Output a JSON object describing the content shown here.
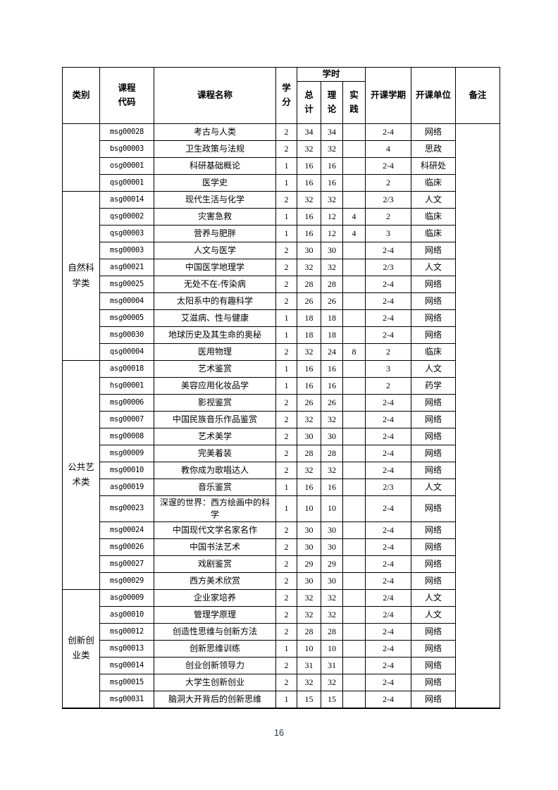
{
  "page": {
    "number": "16"
  },
  "table": {
    "headers": {
      "category": "类别",
      "code": "课程代码",
      "name": "课程名称",
      "credits": "学分",
      "hours": "学时",
      "hours_total": "总计",
      "hours_theory": "理论",
      "hours_practice": "实践",
      "semester": "开课学期",
      "department": "开课单位",
      "remarks": "备注"
    },
    "groups": [
      {
        "category": "",
        "rows": [
          {
            "code": "msg00028",
            "name": "考古与人类",
            "credits": "2",
            "total": "34",
            "theory": "34",
            "practice": "",
            "semester": "2-4",
            "department": "网络"
          },
          {
            "code": "bsg00003",
            "name": "卫生政策与法规",
            "credits": "2",
            "total": "32",
            "theory": "32",
            "practice": "",
            "semester": "4",
            "department": "思政"
          },
          {
            "code": "osg00001",
            "name": "科研基础概论",
            "credits": "1",
            "total": "16",
            "theory": "16",
            "practice": "",
            "semester": "2-4",
            "department": "科研处"
          },
          {
            "code": "qsg00001",
            "name": "医学史",
            "credits": "1",
            "total": "16",
            "theory": "16",
            "practice": "",
            "semester": "2",
            "department": "临床"
          }
        ]
      },
      {
        "category": "自然科学类",
        "rows": [
          {
            "code": "asg00014",
            "name": "现代生活与化学",
            "credits": "2",
            "total": "32",
            "theory": "32",
            "practice": "",
            "semester": "2/3",
            "department": "人文"
          },
          {
            "code": "qsg00002",
            "name": "灾害急救",
            "credits": "1",
            "total": "16",
            "theory": "12",
            "practice": "4",
            "semester": "2",
            "department": "临床"
          },
          {
            "code": "qsg00003",
            "name": "营养与肥胖",
            "credits": "1",
            "total": "16",
            "theory": "12",
            "practice": "4",
            "semester": "3",
            "department": "临床"
          },
          {
            "code": "msg00003",
            "name": "人文与医学",
            "credits": "2",
            "total": "30",
            "theory": "30",
            "practice": "",
            "semester": "2-4",
            "department": "网络"
          },
          {
            "code": "asg00021",
            "name": "中国医学地理学",
            "credits": "2",
            "total": "32",
            "theory": "32",
            "practice": "",
            "semester": "2/3",
            "department": "人文"
          },
          {
            "code": "msg00025",
            "name": "无处不在-传染病",
            "credits": "2",
            "total": "28",
            "theory": "28",
            "practice": "",
            "semester": "2-4",
            "department": "网络"
          },
          {
            "code": "msg00004",
            "name": "太阳系中的有趣科学",
            "credits": "2",
            "total": "26",
            "theory": "26",
            "practice": "",
            "semester": "2-4",
            "department": "网络"
          },
          {
            "code": "msg00005",
            "name": "艾滋病、性与健康",
            "credits": "1",
            "total": "18",
            "theory": "18",
            "practice": "",
            "semester": "2-4",
            "department": "网络"
          },
          {
            "code": "msg00030",
            "name": "地球历史及其生命的奥秘",
            "credits": "1",
            "total": "18",
            "theory": "18",
            "practice": "",
            "semester": "2-4",
            "department": "网络"
          },
          {
            "code": "qsg00004",
            "name": "医用物理",
            "credits": "2",
            "total": "32",
            "theory": "24",
            "practice": "8",
            "semester": "2",
            "department": "临床"
          }
        ]
      },
      {
        "category": "公共艺术类",
        "rows": [
          {
            "code": "asg00018",
            "name": "艺术鉴赏",
            "credits": "1",
            "total": "16",
            "theory": "16",
            "practice": "",
            "semester": "3",
            "department": "人文"
          },
          {
            "code": "hsg00001",
            "name": "美容应用化妆品学",
            "credits": "1",
            "total": "16",
            "theory": "16",
            "practice": "",
            "semester": "2",
            "department": "药学"
          },
          {
            "code": "msg00006",
            "name": "影视鉴赏",
            "credits": "2",
            "total": "26",
            "theory": "26",
            "practice": "",
            "semester": "2-4",
            "department": "网络"
          },
          {
            "code": "msg00007",
            "name": "中国民族音乐作品鉴赏",
            "credits": "2",
            "total": "32",
            "theory": "32",
            "practice": "",
            "semester": "2-4",
            "department": "网络"
          },
          {
            "code": "msg00008",
            "name": "艺术美学",
            "credits": "2",
            "total": "30",
            "theory": "30",
            "practice": "",
            "semester": "2-4",
            "department": "网络"
          },
          {
            "code": "msg00009",
            "name": "完美着装",
            "credits": "2",
            "total": "28",
            "theory": "28",
            "practice": "",
            "semester": "2-4",
            "department": "网络"
          },
          {
            "code": "msg00010",
            "name": "教你成为歌唱达人",
            "credits": "2",
            "total": "32",
            "theory": "32",
            "practice": "",
            "semester": "2-4",
            "department": "网络"
          },
          {
            "code": "asg00019",
            "name": "音乐鉴赏",
            "credits": "1",
            "total": "16",
            "theory": "16",
            "practice": "",
            "semester": "2/3",
            "department": "人文"
          },
          {
            "code": "msg00023",
            "name": "深邃的世界：西方绘画中的科学",
            "credits": "1",
            "total": "10",
            "theory": "10",
            "practice": "",
            "semester": "2-4",
            "department": "网络"
          },
          {
            "code": "msg00024",
            "name": "中国现代文学名家名作",
            "credits": "2",
            "total": "30",
            "theory": "30",
            "practice": "",
            "semester": "2-4",
            "department": "网络"
          },
          {
            "code": "msg00026",
            "name": "中国书法艺术",
            "credits": "2",
            "total": "30",
            "theory": "30",
            "practice": "",
            "semester": "2-4",
            "department": "网络"
          },
          {
            "code": "msg00027",
            "name": "戏剧鉴赏",
            "credits": "2",
            "total": "29",
            "theory": "29",
            "practice": "",
            "semester": "2-4",
            "department": "网络"
          },
          {
            "code": "msg00029",
            "name": "西方美术欣赏",
            "credits": "2",
            "total": "30",
            "theory": "30",
            "practice": "",
            "semester": "2-4",
            "department": "网络"
          }
        ]
      },
      {
        "category": "创新创业类",
        "rows": [
          {
            "code": "asg00009",
            "name": "企业家培养",
            "credits": "2",
            "total": "32",
            "theory": "32",
            "practice": "",
            "semester": "2/4",
            "department": "人文"
          },
          {
            "code": "asg00010",
            "name": "管理学原理",
            "credits": "2",
            "total": "32",
            "theory": "32",
            "practice": "",
            "semester": "2/4",
            "department": "人文"
          },
          {
            "code": "msg00012",
            "name": "创造性思维与创新方法",
            "credits": "2",
            "total": "28",
            "theory": "28",
            "practice": "",
            "semester": "2-4",
            "department": "网络"
          },
          {
            "code": "msg00013",
            "name": "创新思维训练",
            "credits": "1",
            "total": "10",
            "theory": "10",
            "practice": "",
            "semester": "2-4",
            "department": "网络"
          },
          {
            "code": "msg00014",
            "name": "创业创新领导力",
            "credits": "2",
            "total": "31",
            "theory": "31",
            "practice": "",
            "semester": "2-4",
            "department": "网络"
          },
          {
            "code": "msg00015",
            "name": "大学生创新创业",
            "credits": "2",
            "total": "32",
            "theory": "32",
            "practice": "",
            "semester": "2-4",
            "department": "网络"
          },
          {
            "code": "msg00031",
            "name": "脑洞大开背后的创新思维",
            "credits": "1",
            "total": "15",
            "theory": "15",
            "practice": "",
            "semester": "2-4",
            "department": "网络"
          }
        ]
      }
    ]
  }
}
